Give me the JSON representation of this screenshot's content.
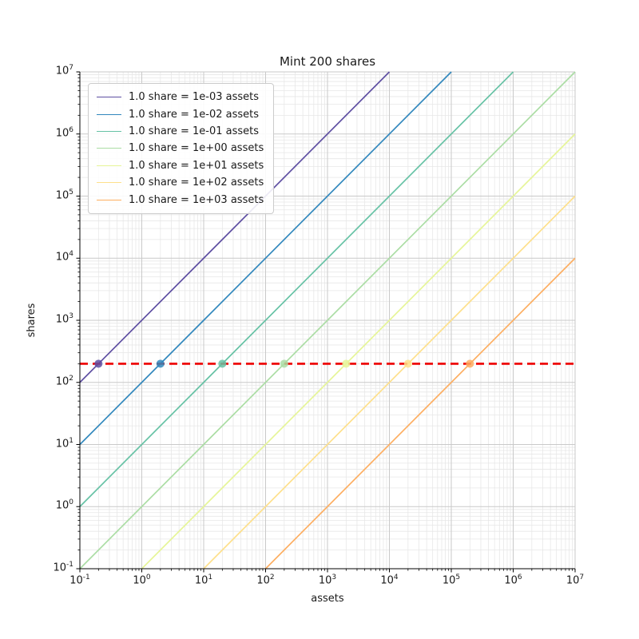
{
  "figure": {
    "title": "Mint 200 shares",
    "xlabel": "assets",
    "ylabel": "shares",
    "background_color": "#ffffff",
    "text_color": "#1a1a1a"
  },
  "chart_data": {
    "type": "line",
    "title": "Mint 200 shares",
    "xlabel": "assets",
    "ylabel": "shares",
    "xscale": "log",
    "yscale": "log",
    "xlim": [
      0.1,
      10000000
    ],
    "ylim": [
      0.1,
      10000000
    ],
    "x_tick_exponents": [
      -1,
      0,
      1,
      2,
      3,
      4,
      5,
      6,
      7
    ],
    "y_tick_exponents": [
      -1,
      0,
      1,
      2,
      3,
      4,
      5,
      6,
      7
    ],
    "grid": "major and minor, log decades",
    "legend_position": "upper-left",
    "series": [
      {
        "label": "1.0 share = 1e-03 assets",
        "assets_per_share": 0.001,
        "color": "#5e4fa2",
        "intersection": {
          "assets": 0.2,
          "shares": 200
        }
      },
      {
        "label": "1.0 share = 1e-02 assets",
        "assets_per_share": 0.01,
        "color": "#3288bd",
        "intersection": {
          "assets": 2,
          "shares": 200
        }
      },
      {
        "label": "1.0 share = 1e-01 assets",
        "assets_per_share": 0.1,
        "color": "#66c2a5",
        "intersection": {
          "assets": 20,
          "shares": 200
        }
      },
      {
        "label": "1.0 share = 1e+00 assets",
        "assets_per_share": 1,
        "color": "#abdda4",
        "intersection": {
          "assets": 200,
          "shares": 200
        }
      },
      {
        "label": "1.0 share = 1e+01 assets",
        "assets_per_share": 10,
        "color": "#e6f598",
        "intersection": {
          "assets": 2000,
          "shares": 200
        }
      },
      {
        "label": "1.0 share = 1e+02 assets",
        "assets_per_share": 100,
        "color": "#fee08b",
        "intersection": {
          "assets": 20000,
          "shares": 200
        }
      },
      {
        "label": "1.0 share = 1e+03 assets",
        "assets_per_share": 1000,
        "color": "#fdae61",
        "intersection": {
          "assets": 200000,
          "shares": 200
        }
      }
    ],
    "reference_line": {
      "orientation": "horizontal",
      "value": 200,
      "color": "#ee0000",
      "linestyle": "dashed"
    },
    "style": {
      "grid_major_color": "#c9c9c9",
      "grid_minor_color": "#e7e7e7",
      "spine_color": "#000000",
      "marker_radius": 5,
      "line_width": 1.7,
      "reference_line_width": 2.7
    }
  }
}
